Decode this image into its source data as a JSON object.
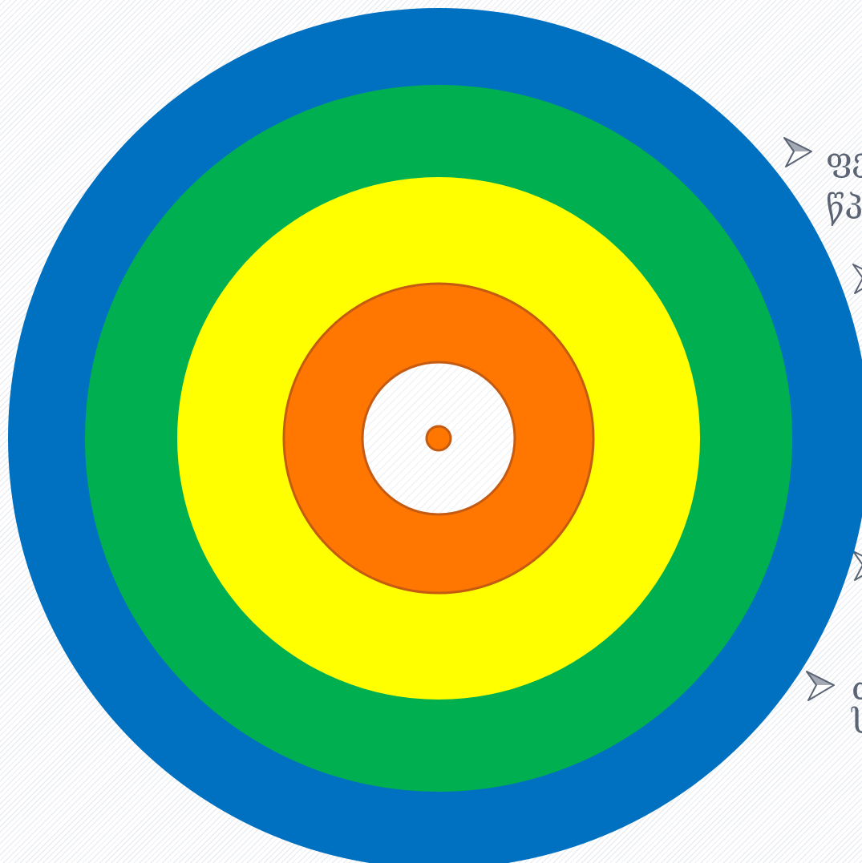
{
  "colors": {
    "background": "#ffffff",
    "stripe": "#e4e7ec",
    "text": "#5a6474",
    "bullet_fill": "#ffffff",
    "bullet_stroke": "#5a6474"
  },
  "target": {
    "rings": [
      {
        "name": "ring-blue",
        "color": "#0070c0",
        "stroke": "none"
      },
      {
        "name": "ring-green",
        "color": "#00b050",
        "stroke": "none"
      },
      {
        "name": "ring-yellow",
        "color": "#ffff00",
        "stroke": "none"
      },
      {
        "name": "ring-orange",
        "color": "#ff7700",
        "stroke": "#c55a11"
      },
      {
        "name": "ring-center-hole",
        "color": "transparent",
        "stroke": "#c55a11"
      },
      {
        "name": "bullseye-dot",
        "color": "#ff7700",
        "stroke": "#c55a11"
      }
    ]
  },
  "side_text": {
    "line1": "ფე",
    "line2": "წპ",
    "line3": "ძ",
    "line4": "ს"
  },
  "bullets": [
    {
      "name": "bullet-arrow-1-icon"
    },
    {
      "name": "bullet-arrow-2-icon"
    },
    {
      "name": "bullet-arrow-3-icon"
    },
    {
      "name": "bullet-arrow-4-icon"
    }
  ]
}
